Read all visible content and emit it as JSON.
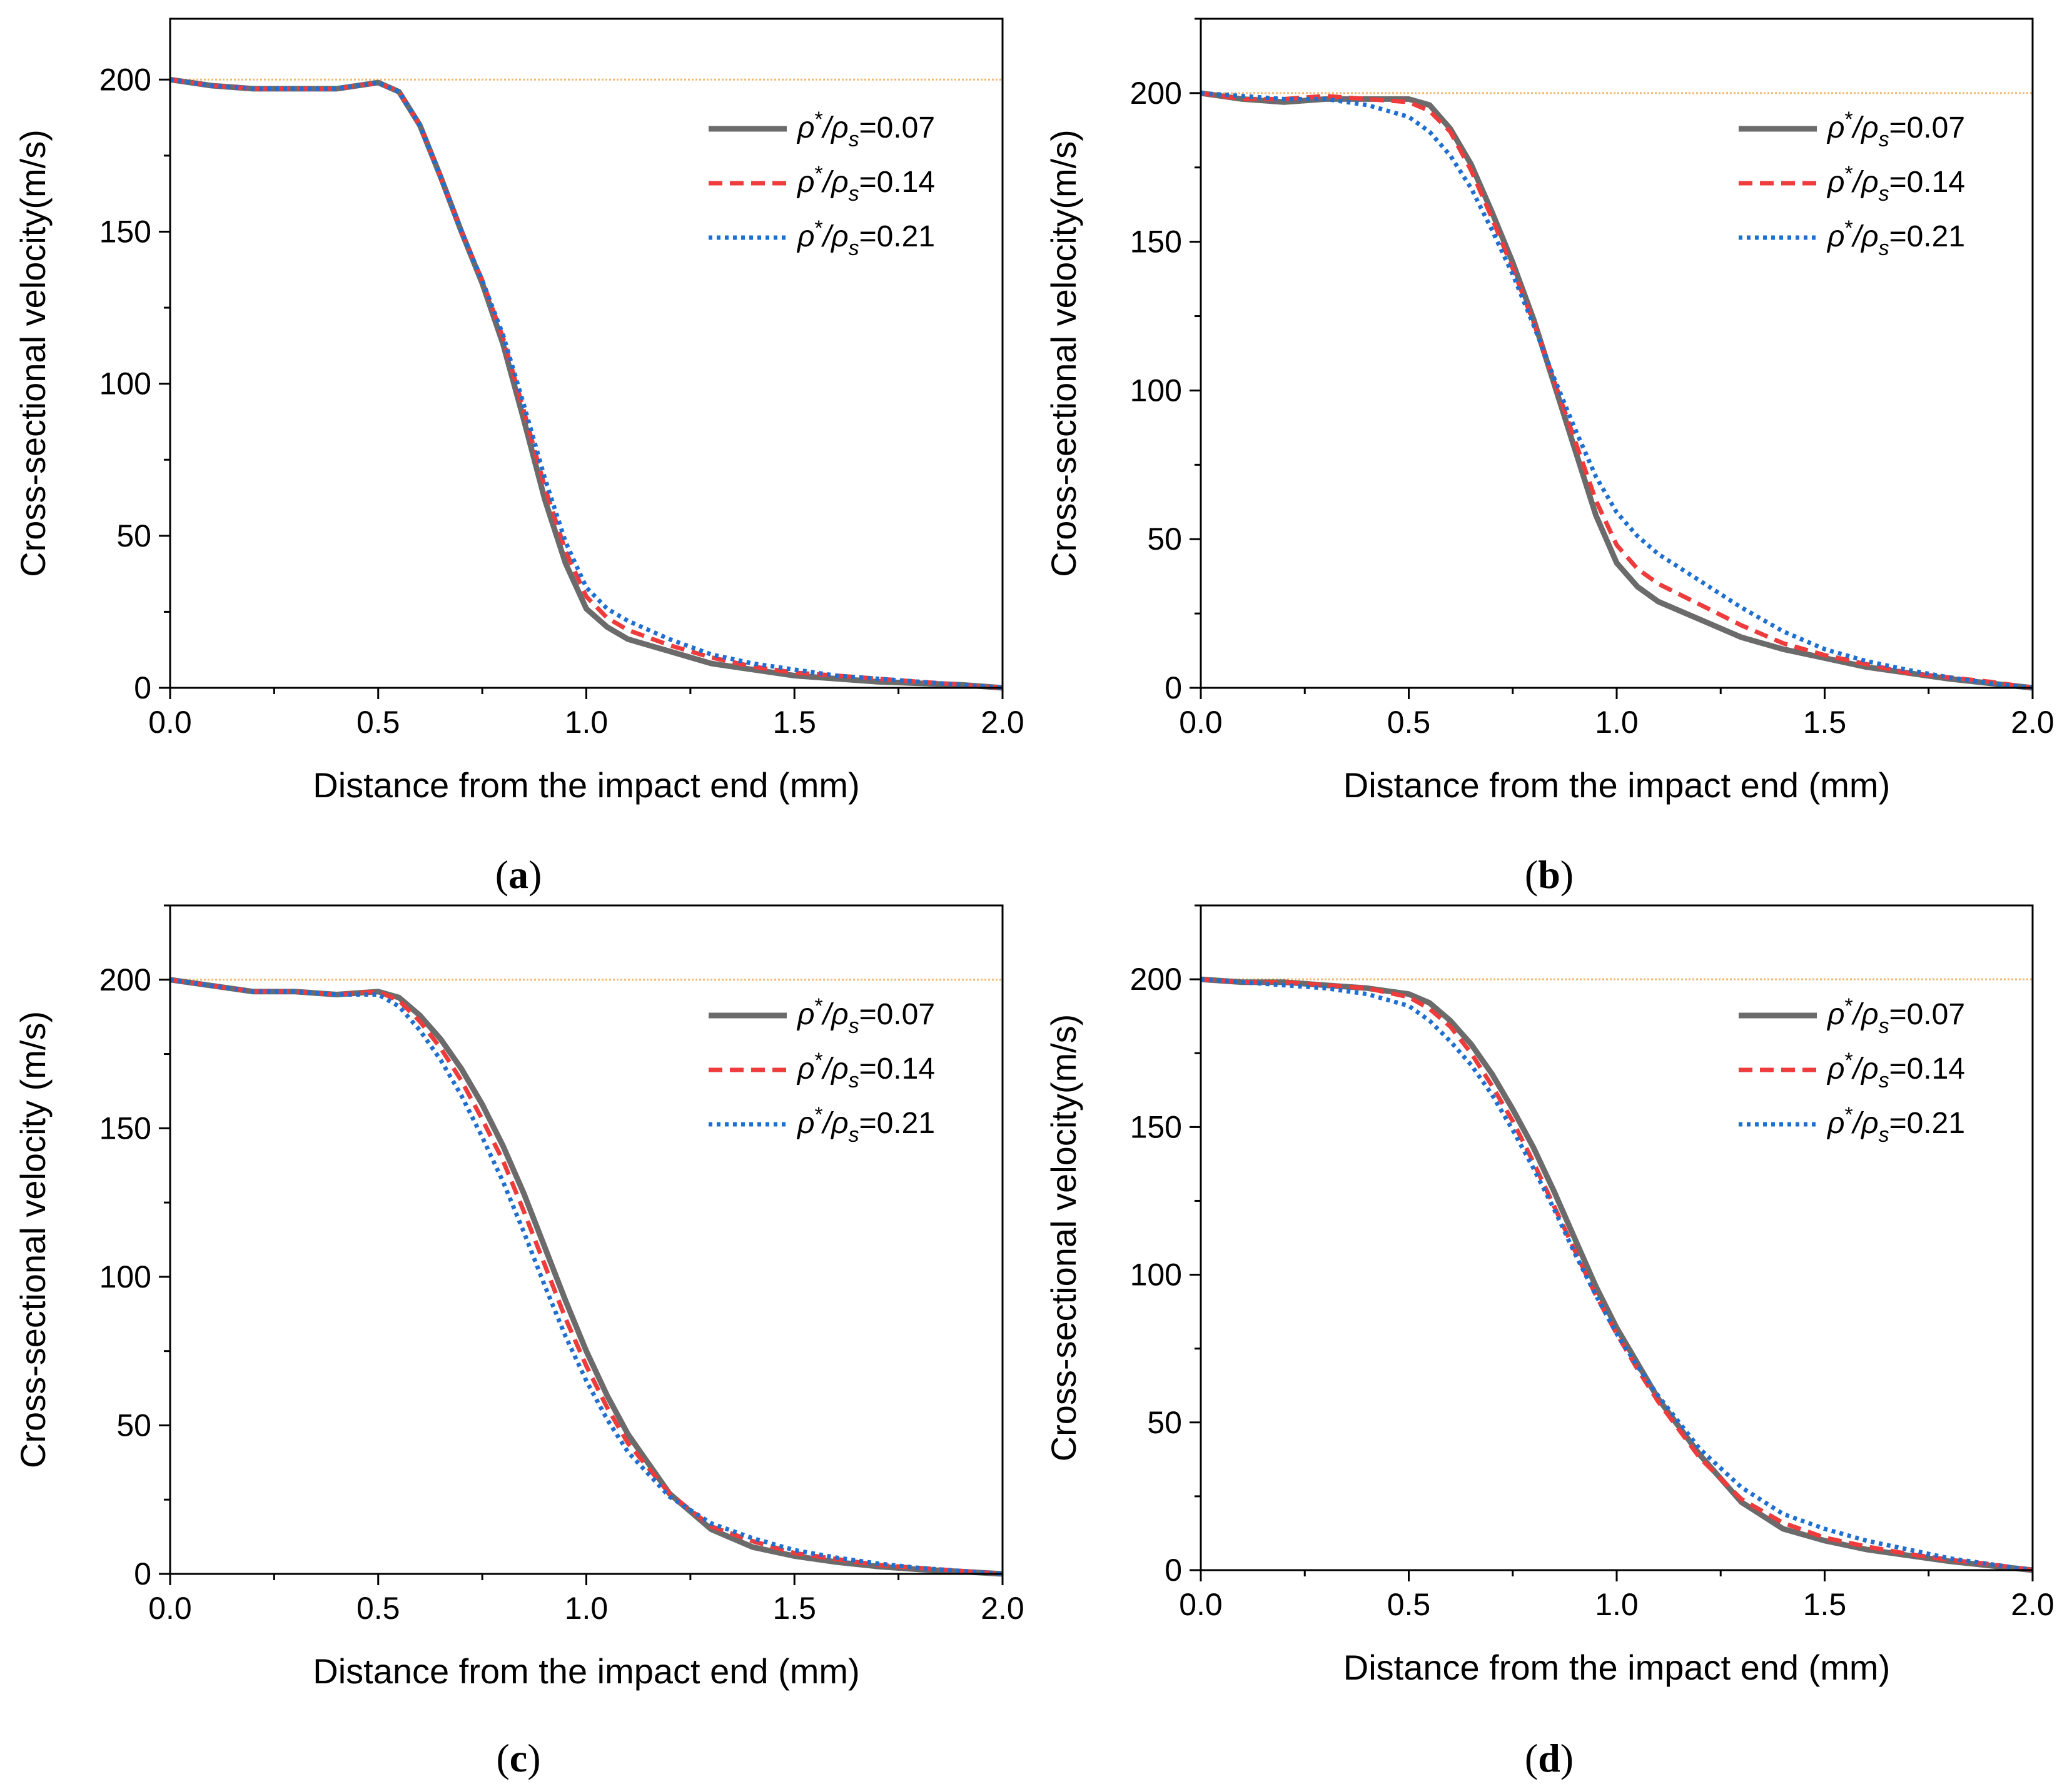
{
  "figure": {
    "colors": {
      "series_007": "#6b6b6b",
      "series_014": "#ee3b3b",
      "series_021": "#1f6fd1",
      "reference_line": "#f2b870",
      "axis": "#000000"
    }
  },
  "chart_data": [
    {
      "type": "line",
      "panel": "(a)",
      "panel_letter": "a",
      "xlabel": "Distance from the impact end (mm)",
      "ylabel": "Cross-sectional velocity(m/s)",
      "xlim": [
        0,
        2.0
      ],
      "ylim": [
        0,
        220
      ],
      "xticks": [
        "0.0",
        "0.5",
        "1.0",
        "1.5",
        "2.0"
      ],
      "yticks": [
        "0",
        "50",
        "100",
        "150",
        "200"
      ],
      "reference_line_y": 200,
      "legend": "top-right",
      "series": [
        {
          "name": "ρ*/ρs=0.07",
          "label_prefix": "ρ",
          "label_sup": "*",
          "label_mid": "/ρ",
          "label_sub": "s",
          "label_value": "=0.07",
          "style": "solid",
          "x": [
            0,
            0.1,
            0.2,
            0.3,
            0.4,
            0.5,
            0.55,
            0.6,
            0.65,
            0.7,
            0.75,
            0.8,
            0.85,
            0.9,
            0.95,
            1.0,
            1.05,
            1.1,
            1.2,
            1.3,
            1.4,
            1.5,
            1.6,
            1.7,
            1.8,
            1.9,
            2.0
          ],
          "y": [
            200,
            198,
            197,
            197,
            197,
            199,
            196,
            185,
            168,
            150,
            133,
            113,
            88,
            62,
            41,
            26,
            20,
            16,
            12,
            8,
            6,
            4,
            3,
            2,
            1.5,
            1,
            0
          ]
        },
        {
          "name": "ρ*/ρs=0.14",
          "label_prefix": "ρ",
          "label_sup": "*",
          "label_mid": "/ρ",
          "label_sub": "s",
          "label_value": "=0.14",
          "style": "dashed",
          "x": [
            0,
            0.1,
            0.2,
            0.3,
            0.4,
            0.5,
            0.55,
            0.6,
            0.65,
            0.7,
            0.75,
            0.8,
            0.85,
            0.9,
            0.95,
            1.0,
            1.05,
            1.1,
            1.2,
            1.3,
            1.4,
            1.5,
            1.6,
            1.7,
            1.8,
            1.9,
            2.0
          ],
          "y": [
            200,
            198,
            197,
            197,
            197,
            199,
            196,
            185,
            168,
            150,
            134,
            115,
            91,
            66,
            45,
            30,
            23,
            19,
            14,
            10,
            7,
            5,
            4,
            3,
            2,
            1,
            0
          ]
        },
        {
          "name": "ρ*/ρs=0.21",
          "label_prefix": "ρ",
          "label_sup": "*",
          "label_mid": "/ρ",
          "label_sub": "s",
          "label_value": "=0.21",
          "style": "dotted",
          "x": [
            0,
            0.1,
            0.2,
            0.3,
            0.4,
            0.5,
            0.55,
            0.6,
            0.65,
            0.7,
            0.75,
            0.8,
            0.85,
            0.9,
            0.95,
            1.0,
            1.05,
            1.1,
            1.2,
            1.3,
            1.4,
            1.5,
            1.6,
            1.7,
            1.8,
            1.9,
            2.0
          ],
          "y": [
            200,
            198,
            197,
            197,
            197,
            199,
            196,
            185,
            168,
            150,
            134,
            116,
            93,
            69,
            48,
            33,
            26,
            22,
            16,
            11,
            8,
            6,
            4,
            3,
            2,
            1,
            0
          ]
        }
      ]
    },
    {
      "type": "line",
      "panel": "(b)",
      "panel_letter": "b",
      "xlabel": "Distance from the impact end (mm)",
      "ylabel": "Cross-sectional velocity(m/s)",
      "xlim": [
        0,
        2.0
      ],
      "ylim": [
        0,
        225
      ],
      "xticks": [
        "0.0",
        "0.5",
        "1.0",
        "1.5",
        "2.0"
      ],
      "yticks": [
        "0",
        "50",
        "100",
        "150",
        "200"
      ],
      "reference_line_y": 200,
      "legend": "top-right",
      "series": [
        {
          "name": "ρ*/ρs=0.07",
          "label_prefix": "ρ",
          "label_sup": "*",
          "label_mid": "/ρ",
          "label_sub": "s",
          "label_value": "=0.07",
          "style": "solid",
          "x": [
            0,
            0.1,
            0.2,
            0.3,
            0.4,
            0.5,
            0.55,
            0.6,
            0.65,
            0.7,
            0.75,
            0.8,
            0.85,
            0.9,
            0.95,
            1.0,
            1.05,
            1.1,
            1.2,
            1.3,
            1.4,
            1.5,
            1.6,
            1.7,
            1.8,
            1.9,
            2.0
          ],
          "y": [
            200,
            198,
            197,
            198,
            198,
            198,
            196,
            188,
            176,
            160,
            143,
            124,
            102,
            80,
            58,
            42,
            34,
            29,
            23,
            17,
            13,
            10,
            7,
            5,
            3,
            1.5,
            0
          ]
        },
        {
          "name": "ρ*/ρs=0.14",
          "label_prefix": "ρ",
          "label_sup": "*",
          "label_mid": "/ρ",
          "label_sub": "s",
          "label_value": "=0.14",
          "style": "dashed",
          "x": [
            0,
            0.1,
            0.2,
            0.3,
            0.4,
            0.5,
            0.55,
            0.6,
            0.65,
            0.7,
            0.75,
            0.8,
            0.85,
            0.9,
            0.95,
            1.0,
            1.05,
            1.1,
            1.2,
            1.3,
            1.4,
            1.5,
            1.6,
            1.7,
            1.8,
            1.9,
            2.0
          ],
          "y": [
            200,
            198,
            198,
            199,
            198,
            197,
            194,
            187,
            174,
            158,
            141,
            123,
            103,
            83,
            63,
            48,
            40,
            35,
            28,
            21,
            15,
            11,
            8,
            5,
            3.5,
            2,
            0
          ]
        },
        {
          "name": "ρ*/ρs=0.21",
          "label_prefix": "ρ",
          "label_sup": "*",
          "label_mid": "/ρ",
          "label_sub": "s",
          "label_value": "=0.21",
          "style": "dotted",
          "x": [
            0,
            0.1,
            0.2,
            0.3,
            0.4,
            0.5,
            0.55,
            0.6,
            0.65,
            0.7,
            0.75,
            0.8,
            0.85,
            0.9,
            0.95,
            1.0,
            1.05,
            1.1,
            1.2,
            1.3,
            1.4,
            1.5,
            1.6,
            1.7,
            1.8,
            1.9,
            2.0
          ],
          "y": [
            200,
            199,
            198,
            198,
            196,
            192,
            187,
            179,
            168,
            154,
            139,
            122,
            104,
            87,
            71,
            59,
            51,
            45,
            36,
            27,
            19,
            13,
            9,
            6,
            3.5,
            1.5,
            0
          ]
        }
      ]
    },
    {
      "type": "line",
      "panel": "(c)",
      "panel_letter": "c",
      "xlabel": "Distance from the impact end (mm)",
      "ylabel": "Cross-sectional velocity (m/s)",
      "xlim": [
        0,
        2.0
      ],
      "ylim": [
        0,
        225
      ],
      "xticks": [
        "0.0",
        "0.5",
        "1.0",
        "1.5",
        "2.0"
      ],
      "yticks": [
        "0",
        "50",
        "100",
        "150",
        "200"
      ],
      "reference_line_y": 200,
      "legend": "top-right",
      "series": [
        {
          "name": "ρ*/ρs=0.07",
          "label_prefix": "ρ",
          "label_sup": "*",
          "label_mid": "/ρ",
          "label_sub": "s",
          "label_value": "=0.07",
          "style": "solid",
          "x": [
            0,
            0.1,
            0.2,
            0.3,
            0.4,
            0.5,
            0.55,
            0.6,
            0.65,
            0.7,
            0.75,
            0.8,
            0.85,
            0.9,
            0.95,
            1.0,
            1.05,
            1.1,
            1.2,
            1.3,
            1.4,
            1.5,
            1.6,
            1.7,
            1.8,
            1.9,
            2.0
          ],
          "y": [
            200,
            198,
            196,
            196,
            195,
            196,
            194,
            188,
            180,
            170,
            158,
            144,
            128,
            110,
            92,
            75,
            60,
            47,
            27,
            15,
            9,
            6,
            4,
            2.5,
            1.5,
            0.8,
            0
          ]
        },
        {
          "name": "ρ*/ρs=0.14",
          "label_prefix": "ρ",
          "label_sup": "*",
          "label_mid": "/ρ",
          "label_sub": "s",
          "label_value": "=0.14",
          "style": "dashed",
          "x": [
            0,
            0.1,
            0.2,
            0.3,
            0.4,
            0.5,
            0.55,
            0.6,
            0.65,
            0.7,
            0.75,
            0.8,
            0.85,
            0.9,
            0.95,
            1.0,
            1.05,
            1.1,
            1.2,
            1.3,
            1.4,
            1.5,
            1.6,
            1.7,
            1.8,
            1.9,
            2.0
          ],
          "y": [
            200,
            198,
            196,
            196,
            195,
            196,
            193,
            186,
            177,
            166,
            153,
            139,
            122,
            104,
            86,
            70,
            56,
            44,
            27,
            16,
            11,
            7,
            5,
            3,
            2,
            1,
            0
          ]
        },
        {
          "name": "ρ*/ρs=0.21",
          "label_prefix": "ρ",
          "label_sup": "*",
          "label_mid": "/ρ",
          "label_sub": "s",
          "label_value": "=0.21",
          "style": "dotted",
          "x": [
            0,
            0.1,
            0.2,
            0.3,
            0.4,
            0.5,
            0.55,
            0.6,
            0.65,
            0.7,
            0.75,
            0.8,
            0.85,
            0.9,
            0.95,
            1.0,
            1.05,
            1.1,
            1.2,
            1.3,
            1.4,
            1.5,
            1.6,
            1.7,
            1.8,
            1.9,
            2.0
          ],
          "y": [
            200,
            198,
            196,
            196,
            195,
            195,
            191,
            183,
            173,
            161,
            147,
            132,
            115,
            97,
            80,
            65,
            52,
            41,
            26,
            17,
            12,
            8,
            5.5,
            3.5,
            2,
            1,
            0
          ]
        }
      ]
    },
    {
      "type": "line",
      "panel": "(d)",
      "panel_letter": "d",
      "xlabel": "Distance from the impact end (mm)",
      "ylabel": "Cross-sectional velocity(m/s)",
      "xlim": [
        0,
        2.0
      ],
      "ylim": [
        0,
        225
      ],
      "xticks": [
        "0.0",
        "0.5",
        "1.0",
        "1.5",
        "2.0"
      ],
      "yticks": [
        "0",
        "50",
        "100",
        "150",
        "200"
      ],
      "reference_line_y": 200,
      "legend": "top-right",
      "series": [
        {
          "name": "ρ*/ρs=0.07",
          "label_prefix": "ρ",
          "label_sup": "*",
          "label_mid": "/ρ",
          "label_sub": "s",
          "label_value": "=0.07",
          "style": "solid",
          "x": [
            0,
            0.1,
            0.2,
            0.3,
            0.4,
            0.5,
            0.55,
            0.6,
            0.65,
            0.7,
            0.75,
            0.8,
            0.85,
            0.9,
            0.95,
            1.0,
            1.05,
            1.1,
            1.2,
            1.3,
            1.4,
            1.5,
            1.6,
            1.7,
            1.8,
            1.9,
            2.0
          ],
          "y": [
            200,
            199,
            199,
            198,
            197,
            195,
            192,
            186,
            178,
            168,
            156,
            143,
            128,
            112,
            96,
            82,
            70,
            58,
            39,
            23,
            14,
            10,
            7,
            5,
            3,
            1.5,
            0
          ]
        },
        {
          "name": "ρ*/ρs=0.14",
          "label_prefix": "ρ",
          "label_sup": "*",
          "label_mid": "/ρ",
          "label_sub": "s",
          "label_value": "=0.14",
          "style": "dashed",
          "x": [
            0,
            0.1,
            0.2,
            0.3,
            0.4,
            0.5,
            0.55,
            0.6,
            0.65,
            0.7,
            0.75,
            0.8,
            0.85,
            0.9,
            0.95,
            1.0,
            1.05,
            1.1,
            1.2,
            1.3,
            1.4,
            1.5,
            1.6,
            1.7,
            1.8,
            1.9,
            2.0
          ],
          "y": [
            200,
            199,
            199,
            198,
            197,
            194,
            190,
            184,
            175,
            164,
            152,
            138,
            123,
            108,
            93,
            80,
            68,
            57,
            38,
            24,
            16,
            11,
            8,
            5.5,
            3.5,
            2,
            0
          ]
        },
        {
          "name": "ρ*/ρs=0.21",
          "label_prefix": "ρ",
          "label_sup": "*",
          "label_mid": "/ρ",
          "label_sub": "s",
          "label_value": "=0.21",
          "style": "dotted",
          "x": [
            0,
            0.1,
            0.2,
            0.3,
            0.4,
            0.5,
            0.55,
            0.6,
            0.65,
            0.7,
            0.75,
            0.8,
            0.85,
            0.9,
            0.95,
            1.0,
            1.05,
            1.1,
            1.2,
            1.3,
            1.4,
            1.5,
            1.6,
            1.7,
            1.8,
            1.9,
            2.0
          ],
          "y": [
            200,
            199,
            198,
            197,
            195,
            191,
            186,
            179,
            171,
            161,
            149,
            136,
            122,
            107,
            93,
            80,
            69,
            59,
            41,
            28,
            19,
            14,
            10,
            7,
            4,
            2,
            0
          ]
        }
      ]
    }
  ]
}
